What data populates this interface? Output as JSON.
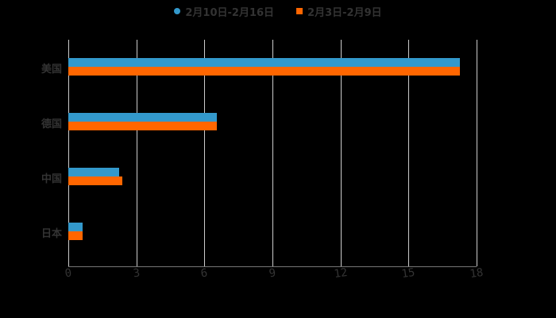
{
  "chart_data": {
    "type": "bar",
    "orientation": "horizontal",
    "title": "",
    "xlabel": "",
    "ylabel": "",
    "categories": [
      "美国",
      "德国",
      "中国",
      "日本"
    ],
    "series": [
      {
        "name": "2月10日-2月16日",
        "color": "#3399cc",
        "values": [
          17.25,
          6.55,
          2.25,
          0.63
        ]
      },
      {
        "name": "2月3日-2月9日",
        "color": "#ff6600",
        "values": [
          17.25,
          6.55,
          2.39,
          0.63
        ]
      }
    ],
    "xlim": [
      0,
      18
    ],
    "xticks": [
      "0",
      "3",
      "6",
      "9",
      "12",
      "15",
      "18"
    ],
    "grid": true,
    "legend_position": "top"
  },
  "legend": [
    {
      "label": "2月10日-2月16日",
      "color": "#3399cc",
      "shape": "circle"
    },
    {
      "label": "2月3日-2月9日",
      "color": "#ff6600",
      "shape": "square"
    }
  ]
}
